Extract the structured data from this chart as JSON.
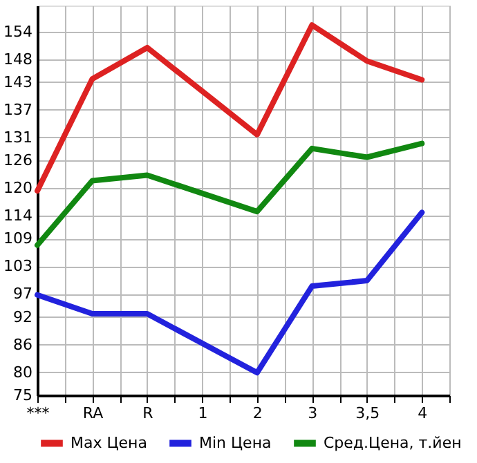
{
  "chart_data": {
    "type": "line",
    "categories": [
      "***",
      "RA",
      "R",
      "1",
      "2",
      "3",
      "3,5",
      "4"
    ],
    "series": [
      {
        "name": "Max Цена",
        "color": "#dd2222",
        "values": [
          119.4,
          143.7,
          150.5,
          null,
          131.6,
          155.4,
          147.6,
          143.5
        ]
      },
      {
        "name": "Min Цена",
        "color": "#2222dd",
        "values": [
          96.8,
          92.7,
          92.7,
          null,
          79.9,
          98.7,
          99.9,
          114.7
        ]
      },
      {
        "name": "Сред.Цена, т.йен",
        "color": "#118811",
        "values": [
          107.6,
          121.6,
          122.8,
          null,
          114.9,
          128.6,
          126.7,
          129.7
        ]
      }
    ],
    "ylim": [
      75,
      159.64
    ],
    "yticks": [
      75,
      80,
      86,
      92,
      97,
      103,
      109,
      114,
      120,
      126,
      131,
      137,
      143,
      148,
      154
    ],
    "grid": true,
    "legend": "bottom",
    "marker": "none",
    "line_style": "solid"
  }
}
